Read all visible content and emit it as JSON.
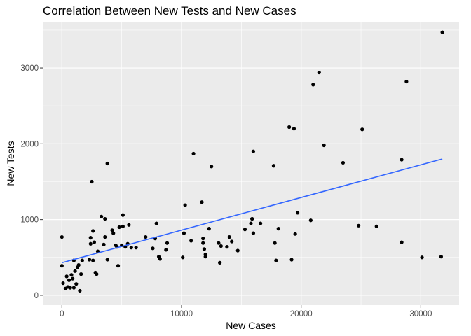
{
  "chart_data": {
    "type": "scatter",
    "title": "Correlation Between New Tests and New Cases",
    "xlabel": "New Cases",
    "ylabel": "New Tests",
    "xlim": [
      -1600,
      33200
    ],
    "ylim": [
      -130,
      3610
    ],
    "x_ticks": [
      0,
      10000,
      20000,
      30000
    ],
    "y_ticks": [
      0,
      1000,
      2000,
      3000
    ],
    "grid": true,
    "legend": "none",
    "colors": {
      "panel_background": "#ebebeb",
      "grid": "#ffffff",
      "points": "#000000",
      "trend_line": "#3366ff"
    },
    "points": [
      [
        0,
        770
      ],
      [
        0,
        390
      ],
      [
        100,
        160
      ],
      [
        300,
        90
      ],
      [
        400,
        250
      ],
      [
        500,
        110
      ],
      [
        600,
        200
      ],
      [
        700,
        100
      ],
      [
        800,
        270
      ],
      [
        900,
        220
      ],
      [
        1000,
        460
      ],
      [
        1000,
        100
      ],
      [
        1100,
        320
      ],
      [
        1200,
        150
      ],
      [
        1300,
        370
      ],
      [
        1400,
        400
      ],
      [
        1500,
        60
      ],
      [
        1600,
        280
      ],
      [
        1700,
        460
      ],
      [
        2300,
        470
      ],
      [
        2400,
        680
      ],
      [
        2400,
        760
      ],
      [
        2500,
        1500
      ],
      [
        2600,
        460
      ],
      [
        2600,
        850
      ],
      [
        2700,
        700
      ],
      [
        2800,
        300
      ],
      [
        2900,
        280
      ],
      [
        3000,
        580
      ],
      [
        3300,
        1040
      ],
      [
        3500,
        670
      ],
      [
        3600,
        770
      ],
      [
        3600,
        1010
      ],
      [
        3800,
        1740
      ],
      [
        3800,
        470
      ],
      [
        4200,
        860
      ],
      [
        4300,
        820
      ],
      [
        4500,
        660
      ],
      [
        4600,
        640
      ],
      [
        4700,
        390
      ],
      [
        4800,
        900
      ],
      [
        5000,
        660
      ],
      [
        5100,
        910
      ],
      [
        5100,
        1060
      ],
      [
        5300,
        640
      ],
      [
        5500,
        680
      ],
      [
        5600,
        930
      ],
      [
        5800,
        630
      ],
      [
        6200,
        630
      ],
      [
        7000,
        770
      ],
      [
        7600,
        620
      ],
      [
        7800,
        750
      ],
      [
        7900,
        950
      ],
      [
        8100,
        510
      ],
      [
        8200,
        480
      ],
      [
        8700,
        600
      ],
      [
        8800,
        690
      ],
      [
        10100,
        500
      ],
      [
        10200,
        820
      ],
      [
        10300,
        1190
      ],
      [
        10800,
        720
      ],
      [
        11000,
        1870
      ],
      [
        11700,
        1230
      ],
      [
        11800,
        690
      ],
      [
        11800,
        750
      ],
      [
        11900,
        610
      ],
      [
        12000,
        540
      ],
      [
        12000,
        510
      ],
      [
        12300,
        880
      ],
      [
        12500,
        1700
      ],
      [
        13100,
        690
      ],
      [
        13200,
        430
      ],
      [
        13300,
        650
      ],
      [
        13800,
        640
      ],
      [
        14000,
        770
      ],
      [
        14200,
        710
      ],
      [
        14700,
        590
      ],
      [
        15300,
        870
      ],
      [
        15800,
        950
      ],
      [
        15900,
        1010
      ],
      [
        15900,
        1010
      ],
      [
        16000,
        820
      ],
      [
        16000,
        1900
      ],
      [
        16600,
        950
      ],
      [
        17700,
        1710
      ],
      [
        17800,
        690
      ],
      [
        17900,
        460
      ],
      [
        18100,
        880
      ],
      [
        19000,
        2220
      ],
      [
        19200,
        470
      ],
      [
        19400,
        2200
      ],
      [
        19500,
        810
      ],
      [
        19700,
        1090
      ],
      [
        20800,
        990
      ],
      [
        21000,
        2780
      ],
      [
        21500,
        2940
      ],
      [
        21900,
        1980
      ],
      [
        23500,
        1750
      ],
      [
        24800,
        920
      ],
      [
        25100,
        2190
      ],
      [
        26300,
        910
      ],
      [
        28400,
        700
      ],
      [
        28400,
        1790
      ],
      [
        28800,
        2820
      ],
      [
        30100,
        500
      ],
      [
        31700,
        510
      ],
      [
        31800,
        3470
      ]
    ],
    "trend_line": [
      [
        0,
        430
      ],
      [
        31800,
        1800
      ]
    ]
  }
}
